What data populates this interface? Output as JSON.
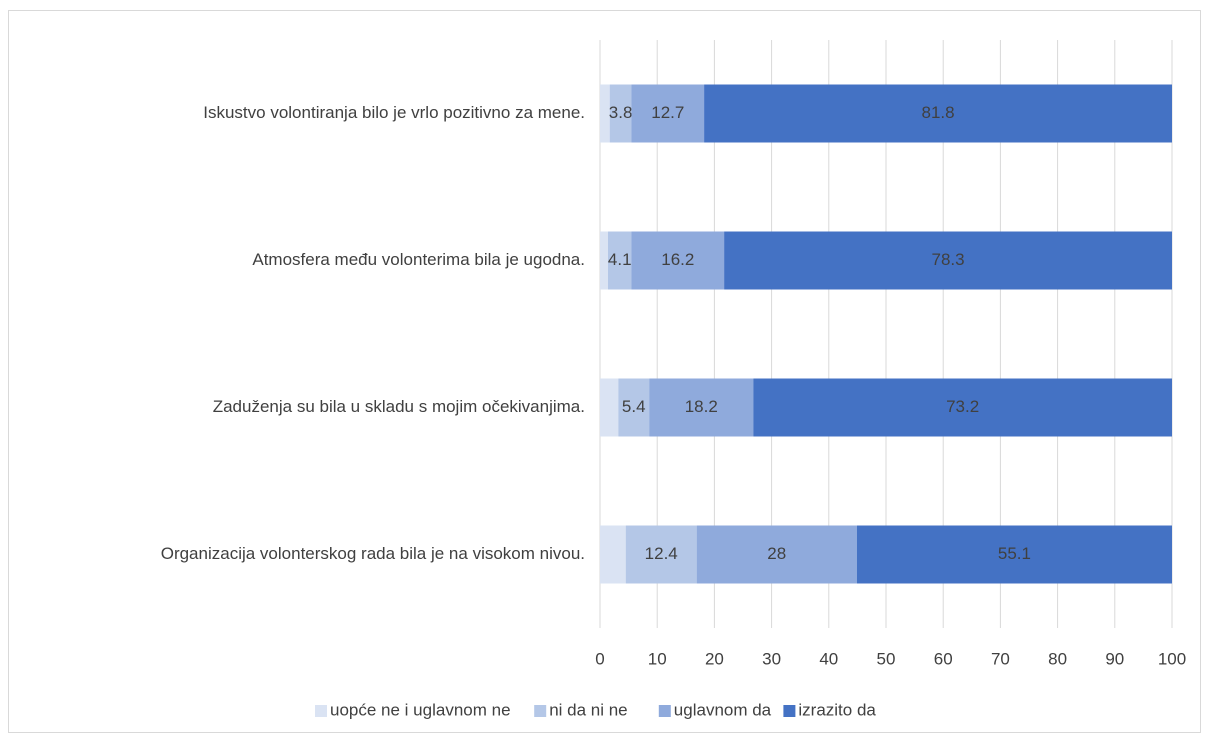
{
  "chart_data": {
    "type": "stacked_barh",
    "categories": [
      "Iskustvo volontiranja bilo je vrlo pozitivno za mene.",
      "Atmosfera među volonterima bila je ugodna.",
      "Zaduženja su bila u skladu s mojim očekivanjima.",
      "Organizacija volonterskog rada bila je na visokom nivou."
    ],
    "series": [
      {
        "name": "uopće ne i uglavnom ne",
        "color": "#dae3f3",
        "values": [
          1.7,
          1.4,
          3.2,
          4.5
        ],
        "show_labels": false
      },
      {
        "name": "ni da ni ne",
        "color": "#b4c7e7",
        "values": [
          3.8,
          4.1,
          5.4,
          12.4
        ],
        "show_labels": true
      },
      {
        "name": "uglavnom da",
        "color": "#8faadc",
        "values": [
          12.7,
          16.2,
          18.2,
          28
        ],
        "show_labels": true
      },
      {
        "name": "izrazito da",
        "color": "#4472c4",
        "values": [
          81.8,
          78.3,
          73.2,
          55.1
        ],
        "show_labels": true
      }
    ],
    "xlim": [
      0,
      100
    ],
    "xticks": [
      0,
      10,
      20,
      30,
      40,
      50,
      60,
      70,
      80,
      90,
      100
    ],
    "grid": true,
    "legend": "bottom"
  }
}
